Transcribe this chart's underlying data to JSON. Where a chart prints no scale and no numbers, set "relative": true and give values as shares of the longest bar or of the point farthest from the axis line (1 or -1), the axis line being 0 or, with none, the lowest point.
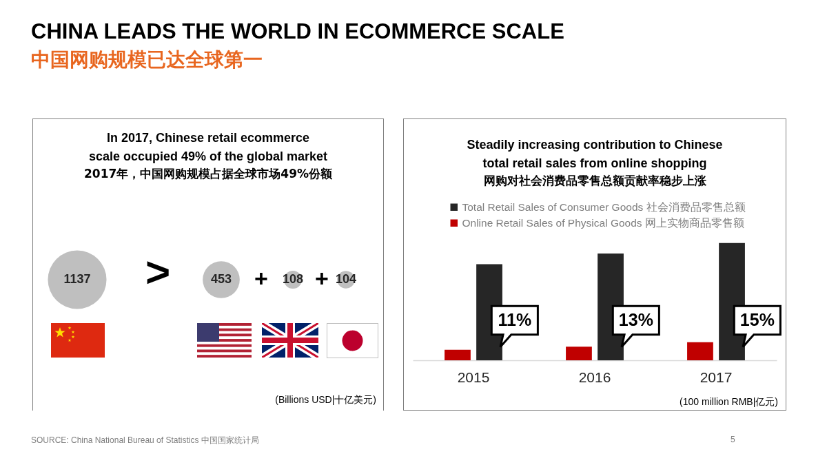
{
  "chart_data": [
    {
      "type": "other",
      "title": "CHINA LEADS THE WORLD IN ECOMMERCE SCALE",
      "subtitle": "中国网购规模已达全球第一",
      "annotations": [
        "SOURCE: China National Bureau of Statistics 中国国家统计局",
        "5"
      ]
    },
    {
      "type": "other",
      "title": "In 2017, Chinese retail ecommerce scale occupied 49% of the global market",
      "subtitle": "2017年，中国网购规模占据全球市场49%份额",
      "categories": [
        null,
        null,
        null,
        null
      ],
      "values": [
        1137,
        453,
        108,
        104
      ],
      "color": "#bfbfbf",
      "data_labels": true,
      "annotations": [
        ">",
        "+",
        "+",
        "(Billions USD|十亿美元)"
      ]
    },
    {
      "type": "bar",
      "title": "Steadily increasing contribution to Chinese total retail sales from online shopping",
      "subtitle": "网购对社会消费品零售总额贡献率稳步上涨",
      "categories": [
        "2015",
        "2016",
        "2017"
      ],
      "relative": true,
      "legend": "top",
      "series": [
        {
          "name": "Total Retail Sales of Consumer Goods 社会消费品零售总额",
          "color": "#262626",
          "values": [
            0.82,
            0.91,
            1
          ]
        },
        {
          "name": "Online Retail Sales of Physical Goods 网上实物商品零售额",
          "color": "#c00000",
          "values": [
            0.089,
            0.116,
            0.154
          ]
        }
      ],
      "annotations": [
        {
          "text": "11%",
          "x": "2015"
        },
        {
          "text": "13%",
          "x": "2016"
        },
        {
          "text": "15%",
          "x": "2017"
        },
        "(100 million RMB|亿元)"
      ]
    }
  ]
}
